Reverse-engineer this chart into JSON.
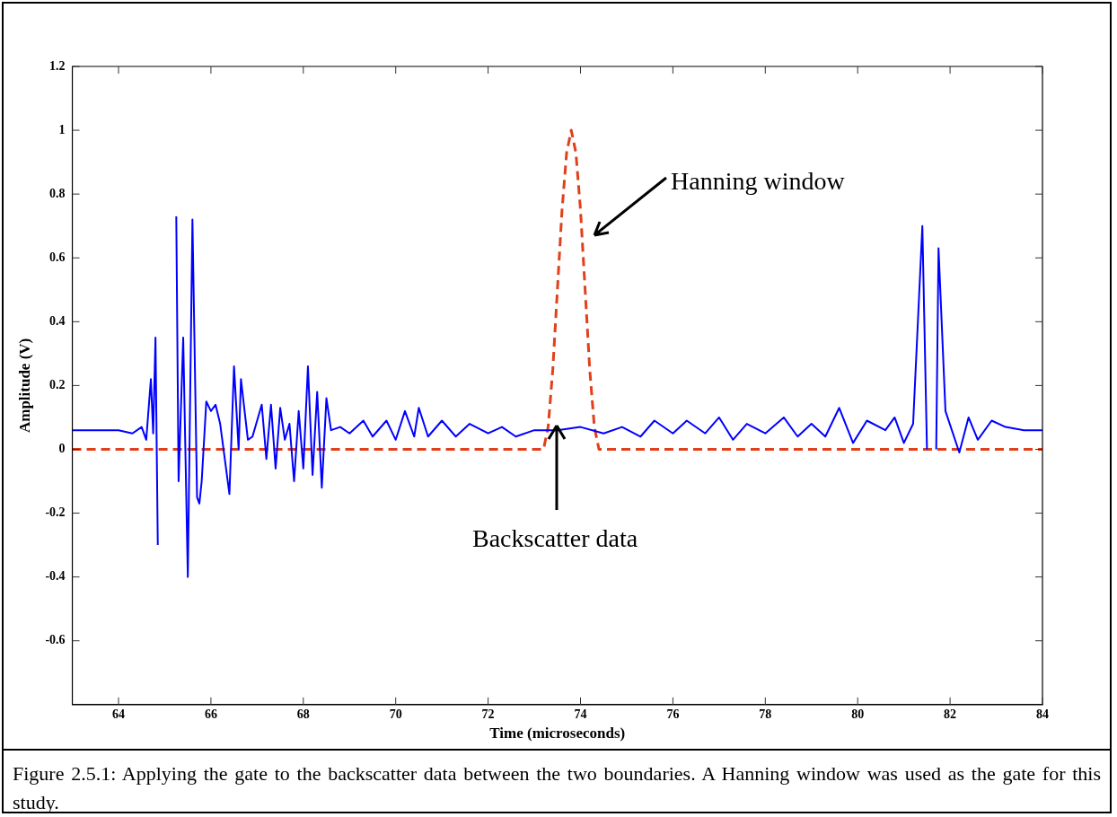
{
  "chart_data": {
    "type": "line",
    "xlabel": "Time (microseconds)",
    "ylabel": "Amplitude (V)",
    "xlim": [
      63,
      84
    ],
    "xticks": [
      64,
      66,
      68,
      70,
      72,
      74,
      76,
      78,
      80,
      82,
      84
    ],
    "ylim": [
      -0.8,
      1.2
    ],
    "yticks": [
      -0.6,
      -0.4,
      -0.2,
      0,
      0.2,
      0.4,
      0.6,
      0.8,
      1,
      1.2
    ],
    "legend": false,
    "marker": "none",
    "series": [
      {
        "color": "#0000ff",
        "line_style": "solid",
        "x": [
          63,
          63.5,
          64,
          64.3,
          64.5,
          64.6,
          64.7,
          64.75,
          64.8,
          64.85,
          64.9,
          64.95,
          65.05,
          65.1,
          65.15,
          65.2,
          65.25,
          65.3,
          65.4,
          65.5,
          65.6,
          65.7,
          65.75,
          65.8,
          65.9,
          66,
          66.1,
          66.2,
          66.4,
          66.5,
          66.6,
          66.65,
          66.8,
          66.9,
          67.1,
          67.2,
          67.3,
          67.4,
          67.5,
          67.6,
          67.7,
          67.8,
          67.9,
          68,
          68.1,
          68.2,
          68.3,
          68.4,
          68.5,
          68.6,
          68.8,
          69,
          69.3,
          69.5,
          69.8,
          70,
          70.2,
          70.4,
          70.5,
          70.7,
          71,
          71.3,
          71.6,
          72,
          72.3,
          72.6,
          73,
          73.5,
          74,
          74.5,
          74.9,
          75.3,
          75.6,
          76,
          76.3,
          76.7,
          77,
          77.3,
          77.6,
          78,
          78.4,
          78.7,
          79,
          79.3,
          79.6,
          79.9,
          80.2,
          80.6,
          80.8,
          81,
          81.2,
          81.4,
          81.5,
          81.6,
          81.7,
          81.75,
          81.9,
          82.2,
          82.4,
          82.6,
          82.9,
          83.2,
          83.6,
          84
        ],
        "values": [
          0.06,
          0.06,
          0.06,
          0.05,
          0.07,
          0.03,
          0.22,
          0.05,
          0.35,
          -0.3,
          null,
          null,
          null,
          null,
          null,
          null,
          0.73,
          -0.1,
          0.35,
          -0.4,
          0.72,
          -0.15,
          -0.17,
          -0.1,
          0.15,
          0.12,
          0.14,
          0.08,
          -0.14,
          0.26,
          0,
          0.22,
          0.03,
          0.04,
          0.14,
          -0.03,
          0.14,
          -0.06,
          0.13,
          0.03,
          0.08,
          -0.1,
          0.12,
          -0.06,
          0.26,
          -0.08,
          0.18,
          -0.12,
          0.16,
          0.06,
          0.07,
          0.05,
          0.09,
          0.04,
          0.09,
          0.03,
          0.12,
          0.04,
          0.13,
          0.04,
          0.09,
          0.04,
          0.08,
          0.05,
          0.07,
          0.04,
          0.06,
          0.06,
          0.07,
          0.05,
          0.07,
          0.04,
          0.09,
          0.05,
          0.09,
          0.05,
          0.1,
          0.03,
          0.08,
          0.05,
          0.1,
          0.04,
          0.08,
          0.04,
          0.13,
          0.02,
          0.09,
          0.06,
          0.1,
          0.02,
          0.08,
          0.7,
          0,
          null,
          0,
          0.63,
          0.12,
          -0.01,
          0.1,
          0.03,
          0.09,
          0.07,
          0.06,
          0.06
        ]
      },
      {
        "color": "#e0401a",
        "line_style": "dashed",
        "x": [
          63,
          73.2,
          73.3,
          73.4,
          73.5,
          73.6,
          73.7,
          73.8,
          73.9,
          74,
          74.1,
          74.2,
          74.3,
          74.4,
          84
        ],
        "values": [
          0,
          0,
          0.07,
          0.25,
          0.5,
          0.75,
          0.93,
          1,
          0.93,
          0.75,
          0.5,
          0.25,
          0.07,
          0,
          0
        ]
      }
    ],
    "annotations": [
      "Hanning window",
      "Backscatter data",
      "Figure 2.5.1: Applying the gate to the backscatter data between the two boundaries. A Hanning window was used as the gate for this study."
    ]
  }
}
